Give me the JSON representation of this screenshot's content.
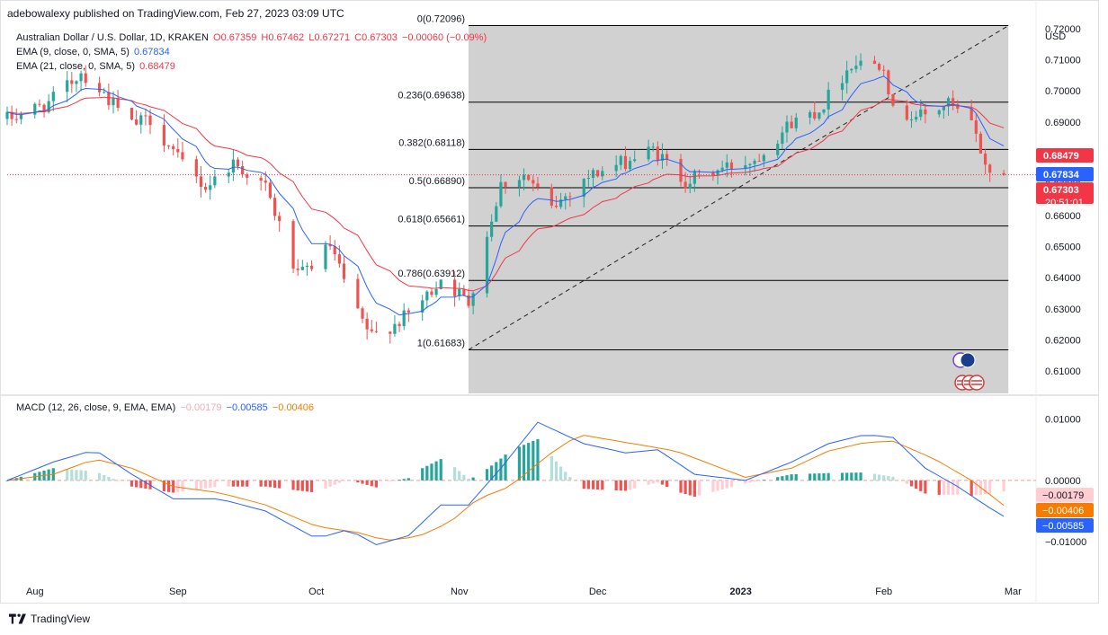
{
  "header": {
    "published": "adebowalexy published on TradingView.com, Feb 27, 2023 03:09 UTC",
    "symbol": "Australian Dollar / U.S. Dollar, 1D, KRAKEN",
    "ohlc": {
      "o": "O0.67359",
      "h": "H0.67462",
      "l": "L0.67271",
      "c": "C0.67303",
      "chg": "−0.00060 (−0.09%)"
    },
    "ema9_label": "EMA (9, close, 0, SMA, 5)",
    "ema9_value": "0.67834",
    "ema21_label": "EMA (21, close, 0, SMA, 5)",
    "ema21_value": "0.68479",
    "macd_label": "MACD (12, 26, close, 9, EMA, EMA)",
    "macd_hist": "−0.00179",
    "macd_line": "−0.00585",
    "macd_signal": "−0.00406"
  },
  "footer": {
    "brand": "TradingView"
  },
  "colors": {
    "up": "#26a69a",
    "down": "#ef5350",
    "ema9": "#2962ff",
    "ema21": "#f23645",
    "macd": "#2962ff",
    "signal": "#f57c00",
    "fib_bg": "#d1d1d1"
  },
  "chart_data": [
    {
      "type": "candlestick",
      "title": "Australian Dollar / U.S. Dollar, 1D, KRAKEN",
      "currency": "USD",
      "x_ticks": [
        "Aug",
        "Sep",
        "Oct",
        "Nov",
        "Dec",
        "2023",
        "Feb",
        "Mar"
      ],
      "x_tick_dates": [
        "2022-08-01",
        "2022-09-01",
        "2022-10-01",
        "2022-11-01",
        "2022-12-01",
        "2023-01-01",
        "2023-02-01",
        "2023-03-01"
      ],
      "x_range": [
        "2022-07-26",
        "2023-03-06"
      ],
      "y_ticks": [
        0.72,
        0.71,
        0.7,
        0.69,
        0.68,
        0.67,
        0.66,
        0.65,
        0.64,
        0.63,
        0.62,
        0.61
      ],
      "y_tick_labels": [
        "0.72000",
        "0.71000",
        "0.70000",
        "0.69000",
        "0.68000",
        "0.67000",
        "0.66000",
        "0.65000",
        "0.64000",
        "0.63000",
        "0.62000",
        "0.61000"
      ],
      "ylim": [
        0.6008,
        0.7266
      ],
      "price_tags": [
        {
          "label": "0.68479",
          "value": 0.68479,
          "color": "#f23645"
        },
        {
          "label": "0.67834",
          "value": 0.67834,
          "color": "#2962ff"
        },
        {
          "label": "0.67303",
          "value": 0.67303,
          "color": "#f23645",
          "sub": "20:51:01"
        }
      ],
      "last_price": 0.67303,
      "fib_retracement": {
        "start_date": "2022-11-03",
        "end_date": "2023-02-28",
        "levels": [
          {
            "label": "0(0.72096)",
            "value": 0.72096
          },
          {
            "label": "0.236(0.69638)",
            "value": 0.69638
          },
          {
            "label": "0.382(0.68118)",
            "value": 0.68118
          },
          {
            "label": "0.5(0.66890)",
            "value": 0.6689
          },
          {
            "label": "0.618(0.65661)",
            "value": 0.65661
          },
          {
            "label": "0.786(0.63912)",
            "value": 0.63912
          },
          {
            "label": "1(0.61683)",
            "value": 0.61683
          }
        ],
        "trendline": {
          "from": [
            "2022-11-03",
            0.61683
          ],
          "to": [
            "2023-02-28",
            0.72096
          ]
        }
      },
      "anchors": [
        [
          "2022-07-26",
          0.691
        ],
        [
          "2022-08-04",
          0.696
        ],
        [
          "2022-08-11",
          0.706
        ],
        [
          "2022-08-16",
          0.699
        ],
        [
          "2022-08-22",
          0.689
        ],
        [
          "2022-08-26",
          0.691
        ],
        [
          "2022-09-01",
          0.678
        ],
        [
          "2022-09-07",
          0.669
        ],
        [
          "2022-09-13",
          0.677
        ],
        [
          "2022-09-20",
          0.669
        ],
        [
          "2022-09-27",
          0.64
        ],
        [
          "2022-10-04",
          0.65
        ],
        [
          "2022-10-10",
          0.628
        ],
        [
          "2022-10-13",
          0.621
        ],
        [
          "2022-10-20",
          0.627
        ],
        [
          "2022-10-25",
          0.634
        ],
        [
          "2022-10-28",
          0.64
        ],
        [
          "2022-11-03",
          0.632
        ],
        [
          "2022-11-10",
          0.67
        ],
        [
          "2022-11-15",
          0.673
        ],
        [
          "2022-11-21",
          0.662
        ],
        [
          "2022-11-28",
          0.672
        ],
        [
          "2022-12-05",
          0.676
        ],
        [
          "2022-12-13",
          0.681
        ],
        [
          "2022-12-20",
          0.671
        ],
        [
          "2022-12-28",
          0.675
        ],
        [
          "2023-01-04",
          0.678
        ],
        [
          "2023-01-12",
          0.69
        ],
        [
          "2023-01-18",
          0.694
        ],
        [
          "2023-01-25",
          0.709
        ],
        [
          "2023-02-01",
          0.709
        ],
        [
          "2023-02-03",
          0.693
        ],
        [
          "2023-02-10",
          0.692
        ],
        [
          "2023-02-15",
          0.696
        ],
        [
          "2023-02-20",
          0.689
        ],
        [
          "2023-02-24",
          0.673
        ],
        [
          "2023-02-27",
          0.673
        ]
      ]
    },
    {
      "type": "line",
      "title": "MACD (12, 26, close, 9, EMA, EMA)",
      "y_ticks": [
        0.01,
        0.0,
        -0.01
      ],
      "y_tick_labels": [
        "0.01000",
        "0.00000",
        "−0.01000"
      ],
      "ylim": [
        -0.0157,
        0.0101
      ],
      "values": {
        "histogram": -0.00179,
        "macd": -0.00585,
        "signal": -0.00406
      },
      "macd_anchors": [
        [
          "2022-07-26",
          0.0
        ],
        [
          "2022-08-05",
          0.003
        ],
        [
          "2022-08-14",
          0.005
        ],
        [
          "2022-08-22",
          0.001
        ],
        [
          "2022-08-31",
          -0.003
        ],
        [
          "2022-09-10",
          -0.003
        ],
        [
          "2022-09-20",
          -0.005
        ],
        [
          "2022-10-01",
          -0.0095
        ],
        [
          "2022-10-08",
          -0.008
        ],
        [
          "2022-10-14",
          -0.0105
        ],
        [
          "2022-10-21",
          -0.009
        ],
        [
          "2022-10-28",
          -0.004
        ],
        [
          "2022-11-03",
          -0.004
        ],
        [
          "2022-11-10",
          0.002
        ],
        [
          "2022-11-18",
          0.0095
        ],
        [
          "2022-11-28",
          0.006
        ],
        [
          "2022-12-07",
          0.0045
        ],
        [
          "2022-12-14",
          0.005
        ],
        [
          "2022-12-22",
          0.001
        ],
        [
          "2023-01-02",
          0.0
        ],
        [
          "2023-01-12",
          0.003
        ],
        [
          "2023-01-20",
          0.006
        ],
        [
          "2023-01-28",
          0.0075
        ],
        [
          "2023-02-03",
          0.007
        ],
        [
          "2023-02-10",
          0.002
        ],
        [
          "2023-02-17",
          -0.001
        ],
        [
          "2023-02-24",
          -0.0045
        ],
        [
          "2023-02-27",
          -0.00585
        ]
      ],
      "signal_anchors": [
        [
          "2022-07-26",
          0.0
        ],
        [
          "2022-08-05",
          0.001
        ],
        [
          "2022-08-14",
          0.0035
        ],
        [
          "2022-08-22",
          0.002
        ],
        [
          "2022-08-31",
          -0.001
        ],
        [
          "2022-09-10",
          -0.002
        ],
        [
          "2022-09-20",
          -0.004
        ],
        [
          "2022-10-01",
          -0.0075
        ],
        [
          "2022-10-10",
          -0.0085
        ],
        [
          "2022-10-16",
          -0.0098
        ],
        [
          "2022-10-23",
          -0.0092
        ],
        [
          "2022-10-30",
          -0.0068
        ],
        [
          "2022-11-05",
          -0.003
        ],
        [
          "2022-11-12",
          -0.001
        ],
        [
          "2022-11-20",
          0.004
        ],
        [
          "2022-11-27",
          0.0075
        ],
        [
          "2022-12-07",
          0.0062
        ],
        [
          "2022-12-18",
          0.0048
        ],
        [
          "2023-01-02",
          0.0005
        ],
        [
          "2023-01-12",
          0.002
        ],
        [
          "2023-01-20",
          0.0048
        ],
        [
          "2023-01-28",
          0.0062
        ],
        [
          "2023-02-03",
          0.0064
        ],
        [
          "2023-02-12",
          0.0035
        ],
        [
          "2023-02-20",
          0.0
        ],
        [
          "2023-02-27",
          -0.00406
        ]
      ]
    }
  ]
}
